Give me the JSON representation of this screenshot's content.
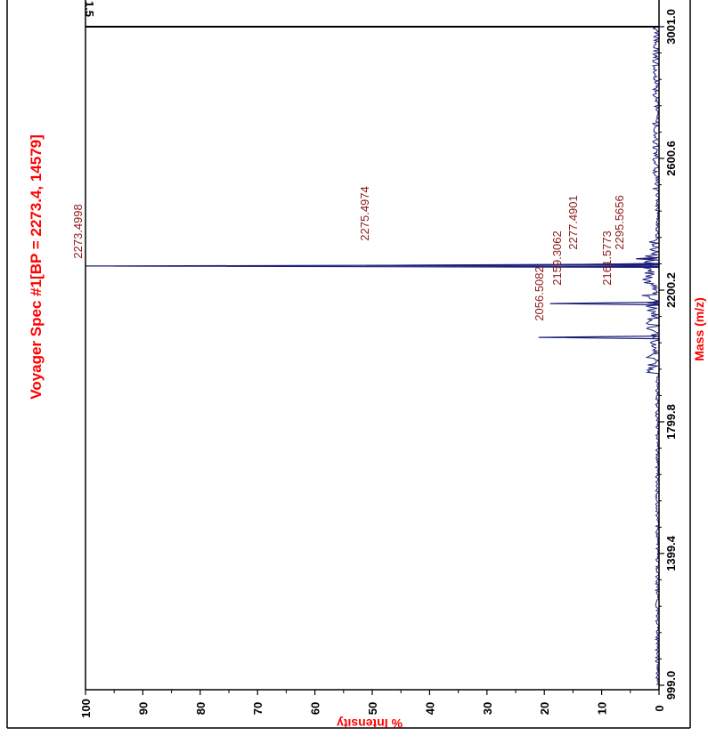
{
  "chart_data": {
    "type": "line",
    "title": "Voyager Spec #1[BP = 2273.4, 14579]",
    "xlabel": "Mass (m/z)",
    "ylabel": "% Intensity",
    "xlim": [
      999.0,
      3001.0
    ],
    "ylim": [
      0,
      100
    ],
    "x_ticks": [
      "999.0",
      "1399.4",
      "1799.8",
      "2200.2",
      "2600.6",
      "3001.0"
    ],
    "y_ticks": [
      "0",
      "10",
      "20",
      "30",
      "40",
      "50",
      "60",
      "70",
      "80",
      "90",
      "100"
    ],
    "y_extra_label": "1.5",
    "orientation": "rotated-90-clockwise",
    "peaks": [
      {
        "mz": 2056.5082,
        "label": "2056.5082",
        "intensity": 21
      },
      {
        "mz": 2159.3062,
        "label": "2159.3062",
        "intensity": 19
      },
      {
        "mz": 2161.5773,
        "label": "2161.5773",
        "intensity": 2
      },
      {
        "mz": 2273.4998,
        "label": "2273.4998",
        "intensity": 100
      },
      {
        "mz": 2275.4974,
        "label": "2275.4974",
        "intensity": 51
      },
      {
        "mz": 2277.4901,
        "label": "2277.4901",
        "intensity": 17
      },
      {
        "mz": 2295.5656,
        "label": "2295.5656",
        "intensity": 4
      }
    ],
    "colors": {
      "trace": "#1c1f7a",
      "peak_labels": "#8b1a1a",
      "title": "#ff0000",
      "axes": "#000000"
    }
  }
}
